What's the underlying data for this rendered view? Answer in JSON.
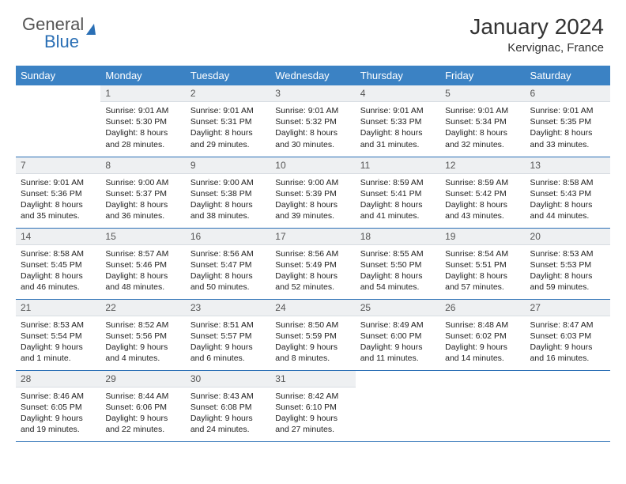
{
  "brand": {
    "word1": "General",
    "word2": "Blue"
  },
  "title": "January 2024",
  "location": "Kervignac, France",
  "colors": {
    "header_bg": "#3b82c4",
    "border": "#2a6fb5",
    "daynum_bg": "#eef0f2",
    "text": "#222222"
  },
  "weekdays": [
    "Sunday",
    "Monday",
    "Tuesday",
    "Wednesday",
    "Thursday",
    "Friday",
    "Saturday"
  ],
  "weeks": [
    [
      null,
      {
        "n": "1",
        "sr": "Sunrise: 9:01 AM",
        "ss": "Sunset: 5:30 PM",
        "dl": "Daylight: 8 hours and 28 minutes."
      },
      {
        "n": "2",
        "sr": "Sunrise: 9:01 AM",
        "ss": "Sunset: 5:31 PM",
        "dl": "Daylight: 8 hours and 29 minutes."
      },
      {
        "n": "3",
        "sr": "Sunrise: 9:01 AM",
        "ss": "Sunset: 5:32 PM",
        "dl": "Daylight: 8 hours and 30 minutes."
      },
      {
        "n": "4",
        "sr": "Sunrise: 9:01 AM",
        "ss": "Sunset: 5:33 PM",
        "dl": "Daylight: 8 hours and 31 minutes."
      },
      {
        "n": "5",
        "sr": "Sunrise: 9:01 AM",
        "ss": "Sunset: 5:34 PM",
        "dl": "Daylight: 8 hours and 32 minutes."
      },
      {
        "n": "6",
        "sr": "Sunrise: 9:01 AM",
        "ss": "Sunset: 5:35 PM",
        "dl": "Daylight: 8 hours and 33 minutes."
      }
    ],
    [
      {
        "n": "7",
        "sr": "Sunrise: 9:01 AM",
        "ss": "Sunset: 5:36 PM",
        "dl": "Daylight: 8 hours and 35 minutes."
      },
      {
        "n": "8",
        "sr": "Sunrise: 9:00 AM",
        "ss": "Sunset: 5:37 PM",
        "dl": "Daylight: 8 hours and 36 minutes."
      },
      {
        "n": "9",
        "sr": "Sunrise: 9:00 AM",
        "ss": "Sunset: 5:38 PM",
        "dl": "Daylight: 8 hours and 38 minutes."
      },
      {
        "n": "10",
        "sr": "Sunrise: 9:00 AM",
        "ss": "Sunset: 5:39 PM",
        "dl": "Daylight: 8 hours and 39 minutes."
      },
      {
        "n": "11",
        "sr": "Sunrise: 8:59 AM",
        "ss": "Sunset: 5:41 PM",
        "dl": "Daylight: 8 hours and 41 minutes."
      },
      {
        "n": "12",
        "sr": "Sunrise: 8:59 AM",
        "ss": "Sunset: 5:42 PM",
        "dl": "Daylight: 8 hours and 43 minutes."
      },
      {
        "n": "13",
        "sr": "Sunrise: 8:58 AM",
        "ss": "Sunset: 5:43 PM",
        "dl": "Daylight: 8 hours and 44 minutes."
      }
    ],
    [
      {
        "n": "14",
        "sr": "Sunrise: 8:58 AM",
        "ss": "Sunset: 5:45 PM",
        "dl": "Daylight: 8 hours and 46 minutes."
      },
      {
        "n": "15",
        "sr": "Sunrise: 8:57 AM",
        "ss": "Sunset: 5:46 PM",
        "dl": "Daylight: 8 hours and 48 minutes."
      },
      {
        "n": "16",
        "sr": "Sunrise: 8:56 AM",
        "ss": "Sunset: 5:47 PM",
        "dl": "Daylight: 8 hours and 50 minutes."
      },
      {
        "n": "17",
        "sr": "Sunrise: 8:56 AM",
        "ss": "Sunset: 5:49 PM",
        "dl": "Daylight: 8 hours and 52 minutes."
      },
      {
        "n": "18",
        "sr": "Sunrise: 8:55 AM",
        "ss": "Sunset: 5:50 PM",
        "dl": "Daylight: 8 hours and 54 minutes."
      },
      {
        "n": "19",
        "sr": "Sunrise: 8:54 AM",
        "ss": "Sunset: 5:51 PM",
        "dl": "Daylight: 8 hours and 57 minutes."
      },
      {
        "n": "20",
        "sr": "Sunrise: 8:53 AM",
        "ss": "Sunset: 5:53 PM",
        "dl": "Daylight: 8 hours and 59 minutes."
      }
    ],
    [
      {
        "n": "21",
        "sr": "Sunrise: 8:53 AM",
        "ss": "Sunset: 5:54 PM",
        "dl": "Daylight: 9 hours and 1 minute."
      },
      {
        "n": "22",
        "sr": "Sunrise: 8:52 AM",
        "ss": "Sunset: 5:56 PM",
        "dl": "Daylight: 9 hours and 4 minutes."
      },
      {
        "n": "23",
        "sr": "Sunrise: 8:51 AM",
        "ss": "Sunset: 5:57 PM",
        "dl": "Daylight: 9 hours and 6 minutes."
      },
      {
        "n": "24",
        "sr": "Sunrise: 8:50 AM",
        "ss": "Sunset: 5:59 PM",
        "dl": "Daylight: 9 hours and 8 minutes."
      },
      {
        "n": "25",
        "sr": "Sunrise: 8:49 AM",
        "ss": "Sunset: 6:00 PM",
        "dl": "Daylight: 9 hours and 11 minutes."
      },
      {
        "n": "26",
        "sr": "Sunrise: 8:48 AM",
        "ss": "Sunset: 6:02 PM",
        "dl": "Daylight: 9 hours and 14 minutes."
      },
      {
        "n": "27",
        "sr": "Sunrise: 8:47 AM",
        "ss": "Sunset: 6:03 PM",
        "dl": "Daylight: 9 hours and 16 minutes."
      }
    ],
    [
      {
        "n": "28",
        "sr": "Sunrise: 8:46 AM",
        "ss": "Sunset: 6:05 PM",
        "dl": "Daylight: 9 hours and 19 minutes."
      },
      {
        "n": "29",
        "sr": "Sunrise: 8:44 AM",
        "ss": "Sunset: 6:06 PM",
        "dl": "Daylight: 9 hours and 22 minutes."
      },
      {
        "n": "30",
        "sr": "Sunrise: 8:43 AM",
        "ss": "Sunset: 6:08 PM",
        "dl": "Daylight: 9 hours and 24 minutes."
      },
      {
        "n": "31",
        "sr": "Sunrise: 8:42 AM",
        "ss": "Sunset: 6:10 PM",
        "dl": "Daylight: 9 hours and 27 minutes."
      },
      null,
      null,
      null
    ]
  ]
}
